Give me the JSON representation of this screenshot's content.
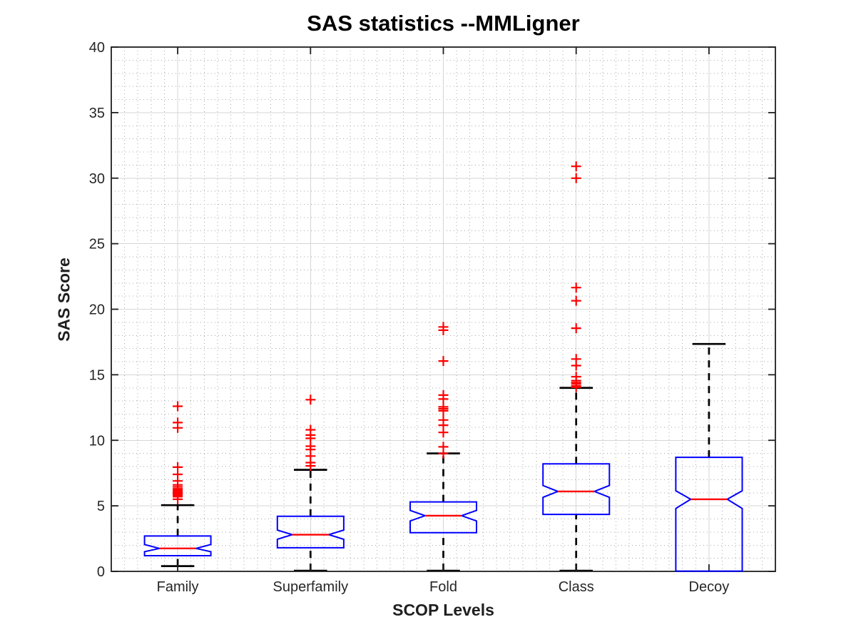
{
  "chart_data": {
    "type": "boxplot",
    "title": "SAS statistics --MMLigner",
    "xlabel": "SCOP Levels",
    "ylabel": "SAS Score",
    "ylim": [
      0,
      40
    ],
    "y_ticks": [
      0,
      5,
      10,
      15,
      20,
      25,
      30,
      35,
      40
    ],
    "y_minor_step": 1,
    "x_minor_divisions_per_category": 10,
    "grid": {
      "major": true,
      "minor_dotted": true
    },
    "legend": "none",
    "categories": [
      "Family",
      "Superfamily",
      "Fold",
      "Class",
      "Decoy"
    ],
    "series": [
      {
        "name": "Family",
        "whisker_low": 0.4,
        "q1": 1.2,
        "median": 1.75,
        "q3": 2.7,
        "whisker_high": 5.05,
        "notch_low": 1.5,
        "notch_high": 2.05,
        "outliers": [
          5.5,
          5.7,
          5.8,
          5.9,
          6.0,
          6.1,
          6.2,
          6.3,
          6.45,
          6.6,
          6.9,
          7.4,
          7.95,
          10.95,
          11.35,
          12.6
        ]
      },
      {
        "name": "Superfamily",
        "whisker_low": 0.05,
        "q1": 1.8,
        "median": 2.8,
        "q3": 4.2,
        "whisker_high": 7.75,
        "notch_low": 2.45,
        "notch_high": 3.15,
        "outliers": [
          8.05,
          8.3,
          8.8,
          9.3,
          9.55,
          10.15,
          10.4,
          10.8,
          13.1
        ]
      },
      {
        "name": "Fold",
        "whisker_low": 0.05,
        "q1": 2.95,
        "median": 4.25,
        "q3": 5.3,
        "whisker_high": 9.0,
        "notch_low": 3.85,
        "notch_high": 4.65,
        "outliers": [
          9.0,
          9.5,
          10.6,
          11.15,
          11.55,
          12.25,
          12.4,
          12.55,
          13.15,
          13.45,
          16.05,
          18.4,
          18.65
        ]
      },
      {
        "name": "Class",
        "whisker_low": 0.05,
        "q1": 4.35,
        "median": 6.1,
        "q3": 8.2,
        "whisker_high": 14.0,
        "notch_low": 5.65,
        "notch_high": 6.55,
        "outliers": [
          14.05,
          14.15,
          14.3,
          14.4,
          14.55,
          14.85,
          15.7,
          16.2,
          18.55,
          20.65,
          21.65,
          30.0,
          30.9
        ]
      },
      {
        "name": "Decoy",
        "whisker_low": 0.0,
        "q1": 0.02,
        "median": 5.5,
        "q3": 8.7,
        "whisker_high": 17.35,
        "notch_low": 4.8,
        "notch_high": 6.15,
        "outliers": []
      }
    ],
    "colors": {
      "box": "#0000ff",
      "median": "#ff0000",
      "outlier": "#ff0000",
      "whisker": "#000000",
      "axis": "#1f1f1f",
      "grid_major": "#d6d6d6",
      "grid_minor": "#a9a9a9",
      "tick_label": "#262626",
      "background": "#ffffff"
    }
  }
}
